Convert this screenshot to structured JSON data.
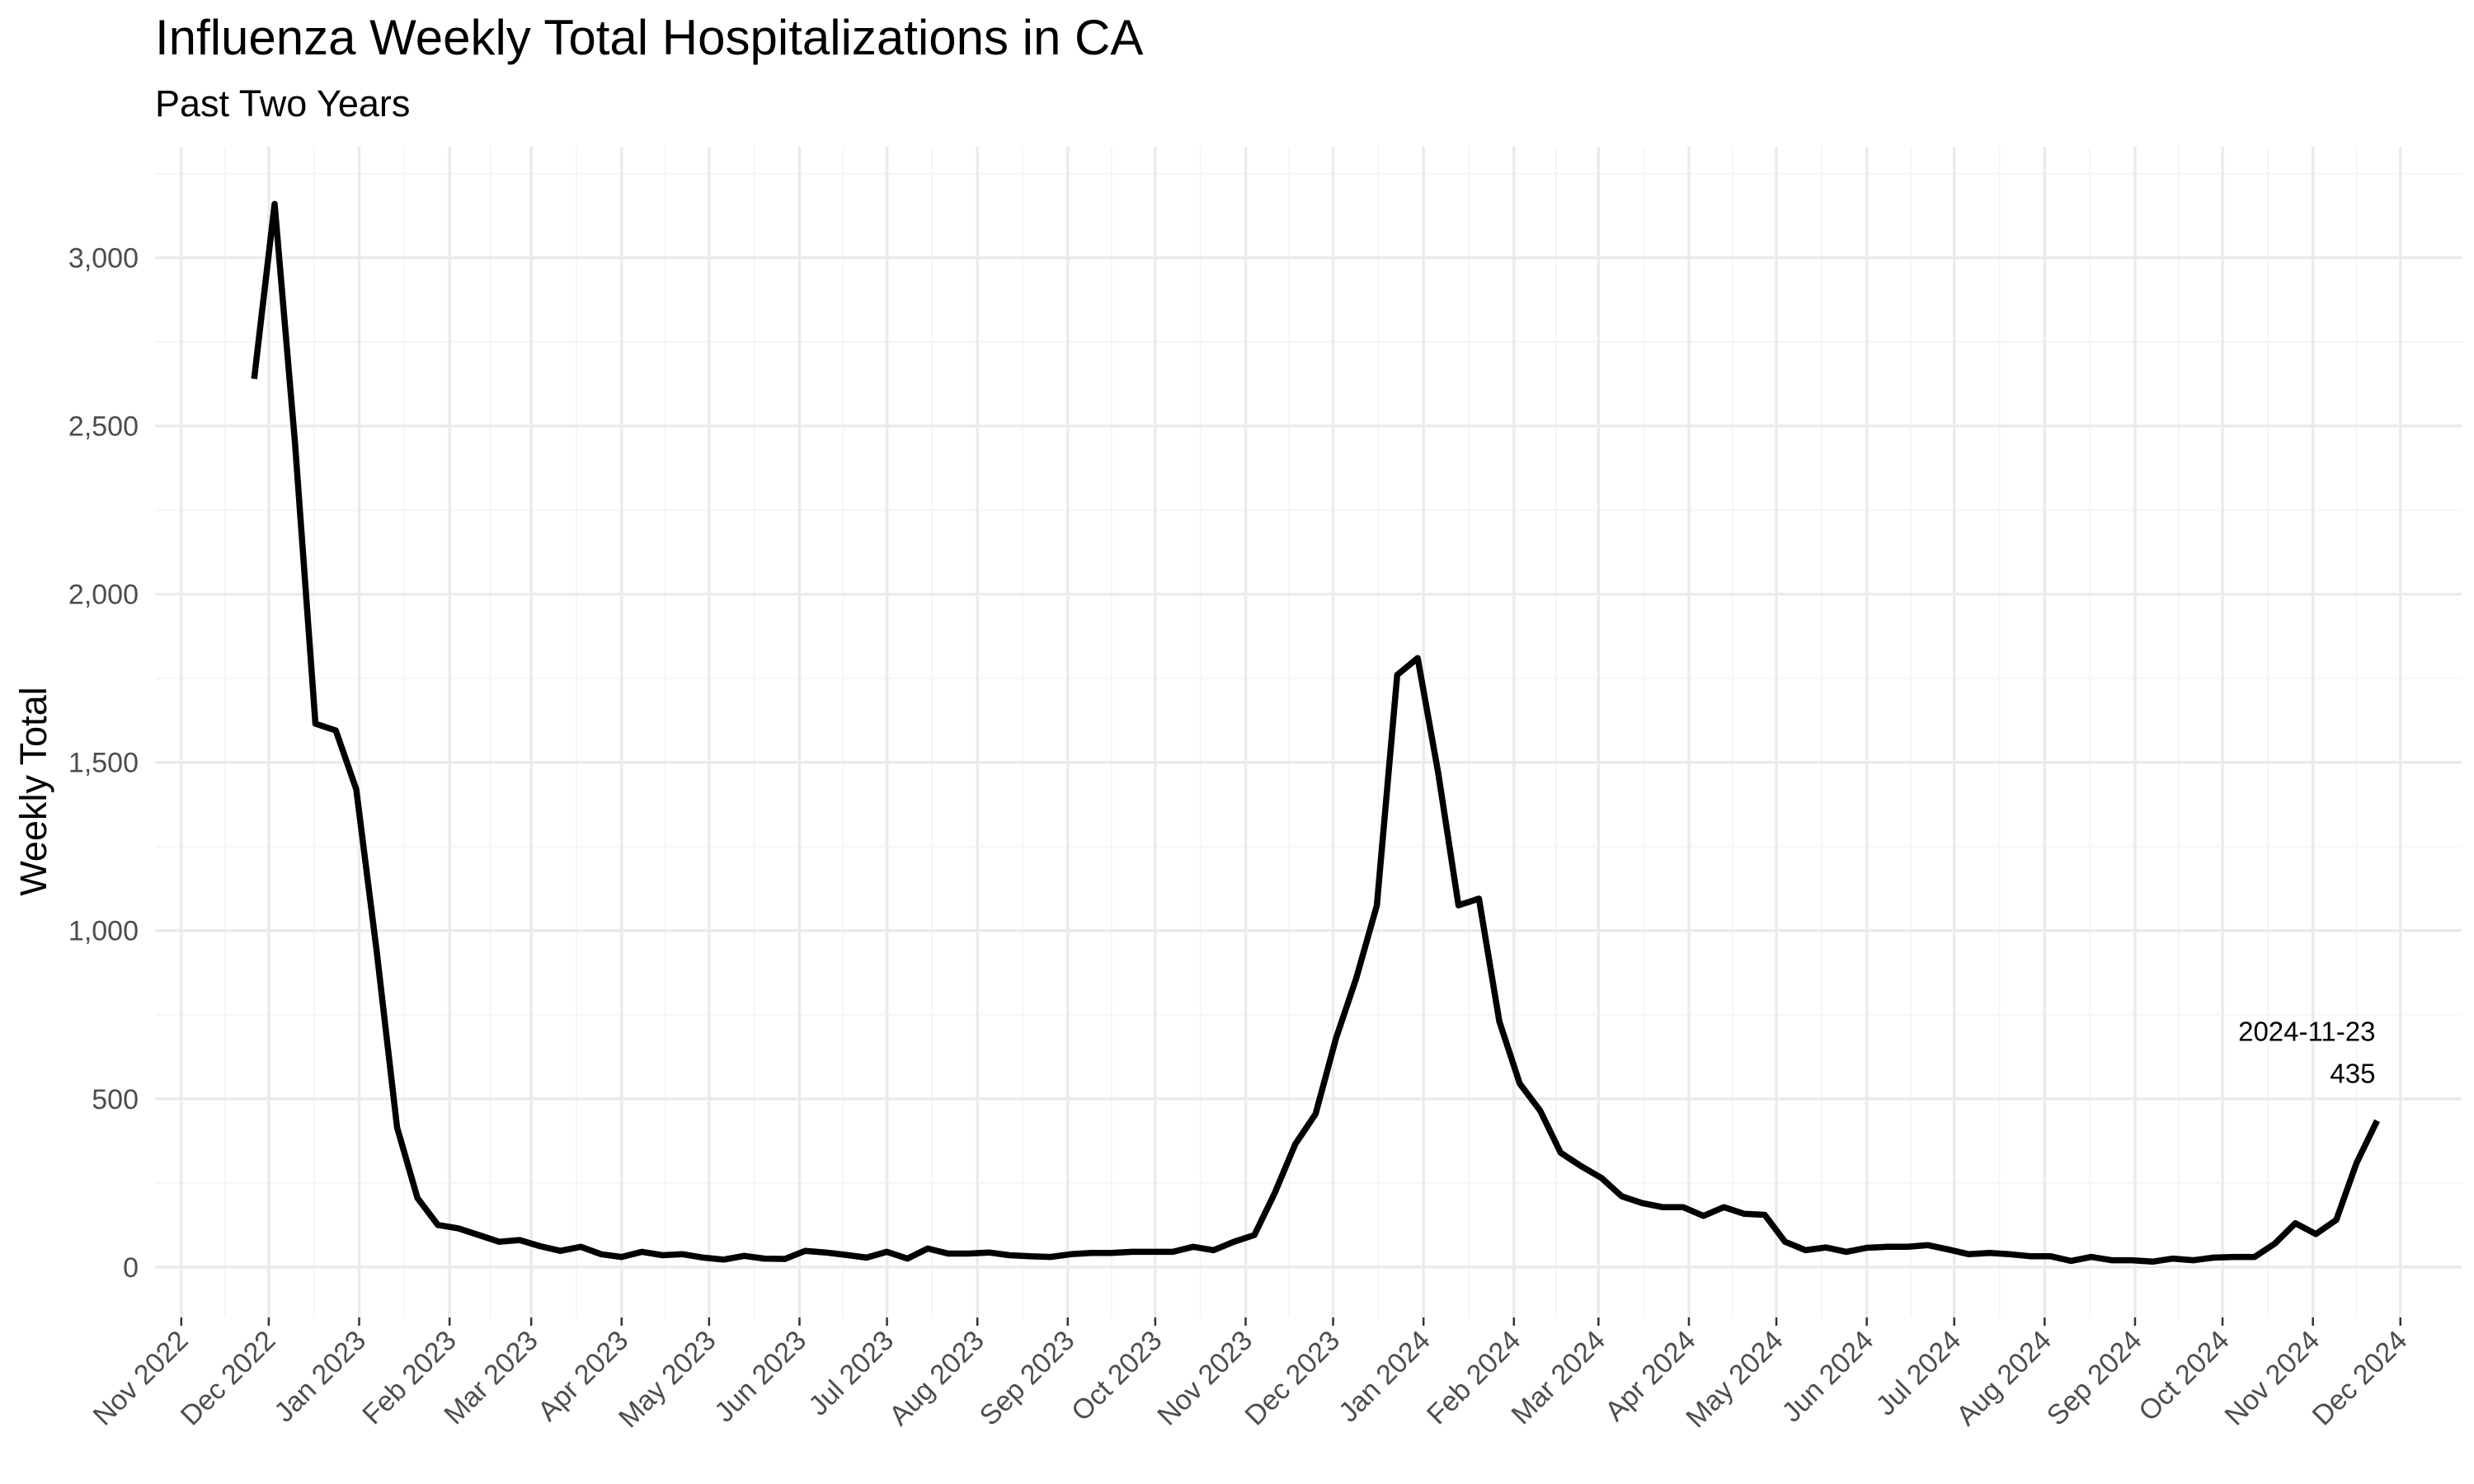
{
  "chart_data": {
    "type": "line",
    "title": "Influenza Weekly Total Hospitalizations in CA",
    "subtitle": "Past Two Years",
    "xlabel": "",
    "ylabel": "Weekly Total",
    "x_range": [
      "2022-10-23",
      "2024-12-22"
    ],
    "ylim": [
      -150,
      3330
    ],
    "y_ticks": [
      0,
      500,
      1000,
      1500,
      2000,
      2500,
      3000
    ],
    "y_tick_labels": [
      "0",
      "500",
      "1,000",
      "1,500",
      "2,000",
      "2,500",
      "3,000"
    ],
    "x_ticks": [
      "2022-11-01",
      "2022-12-01",
      "2023-01-01",
      "2023-02-01",
      "2023-03-01",
      "2023-04-01",
      "2023-05-01",
      "2023-06-01",
      "2023-07-01",
      "2023-08-01",
      "2023-09-01",
      "2023-10-01",
      "2023-11-01",
      "2023-12-01",
      "2024-01-01",
      "2024-02-01",
      "2024-03-01",
      "2024-04-01",
      "2024-05-01",
      "2024-06-01",
      "2024-07-01",
      "2024-08-01",
      "2024-09-01",
      "2024-10-01",
      "2024-11-01",
      "2024-12-01"
    ],
    "x_tick_labels": [
      "Nov 2022",
      "Dec 2022",
      "Jan 2023",
      "Feb 2023",
      "Mar 2023",
      "Apr 2023",
      "May 2023",
      "Jun 2023",
      "Jul 2023",
      "Aug 2023",
      "Sep 2023",
      "Oct 2023",
      "Nov 2023",
      "Dec 2023",
      "Jan 2024",
      "Feb 2024",
      "Mar 2024",
      "Apr 2024",
      "May 2024",
      "Jun 2024",
      "Jul 2024",
      "Aug 2024",
      "Sep 2024",
      "Oct 2024",
      "Nov 2024",
      "Dec 2024"
    ],
    "grid": true,
    "series": [
      {
        "color": "#000000",
        "x": [
          "2022-11-26",
          "2022-12-03",
          "2022-12-10",
          "2022-12-17",
          "2022-12-24",
          "2022-12-31",
          "2023-01-07",
          "2023-01-14",
          "2023-01-21",
          "2023-01-28",
          "2023-02-04",
          "2023-02-11",
          "2023-02-18",
          "2023-02-25",
          "2023-03-04",
          "2023-03-11",
          "2023-03-18",
          "2023-03-25",
          "2023-04-01",
          "2023-04-08",
          "2023-04-15",
          "2023-04-22",
          "2023-04-29",
          "2023-05-06",
          "2023-05-13",
          "2023-05-20",
          "2023-05-27",
          "2023-06-03",
          "2023-06-10",
          "2023-06-17",
          "2023-06-24",
          "2023-07-01",
          "2023-07-08",
          "2023-07-15",
          "2023-07-22",
          "2023-07-29",
          "2023-08-05",
          "2023-08-12",
          "2023-08-19",
          "2023-08-26",
          "2023-09-02",
          "2023-09-09",
          "2023-09-16",
          "2023-09-23",
          "2023-09-30",
          "2023-10-07",
          "2023-10-14",
          "2023-10-21",
          "2023-10-28",
          "2023-11-04",
          "2023-11-11",
          "2023-11-18",
          "2023-11-25",
          "2023-12-02",
          "2023-12-09",
          "2023-12-16",
          "2023-12-23",
          "2023-12-30",
          "2024-01-06",
          "2024-01-13",
          "2024-01-20",
          "2024-01-27",
          "2024-02-03",
          "2024-02-10",
          "2024-02-17",
          "2024-02-24",
          "2024-03-02",
          "2024-03-09",
          "2024-03-16",
          "2024-03-23",
          "2024-03-30",
          "2024-04-06",
          "2024-04-13",
          "2024-04-20",
          "2024-04-27",
          "2024-05-04",
          "2024-05-11",
          "2024-05-18",
          "2024-05-25",
          "2024-06-01",
          "2024-06-08",
          "2024-06-15",
          "2024-06-22",
          "2024-06-29",
          "2024-07-06",
          "2024-07-13",
          "2024-07-20",
          "2024-07-27",
          "2024-08-03",
          "2024-08-10",
          "2024-08-17",
          "2024-08-24",
          "2024-08-31",
          "2024-09-07",
          "2024-09-14",
          "2024-09-21",
          "2024-09-28",
          "2024-10-05",
          "2024-10-12",
          "2024-10-19",
          "2024-10-26",
          "2024-11-02",
          "2024-11-09",
          "2024-11-16",
          "2024-11-23"
        ],
        "y": [
          2640,
          3160,
          2450,
          1615,
          1595,
          1420,
          940,
          415,
          205,
          125,
          115,
          95,
          75,
          80,
          62,
          48,
          60,
          38,
          30,
          45,
          35,
          38,
          28,
          22,
          33,
          25,
          24,
          48,
          43,
          36,
          28,
          45,
          25,
          55,
          40,
          40,
          43,
          35,
          32,
          30,
          38,
          42,
          42,
          45,
          45,
          45,
          60,
          50,
          75,
          95,
          220,
          365,
          455,
          680,
          860,
          1075,
          1760,
          1810,
          1470,
          1075,
          1095,
          730,
          545,
          465,
          340,
          300,
          265,
          210,
          190,
          178,
          178,
          152,
          178,
          158,
          155,
          75,
          50,
          58,
          45,
          57,
          60,
          60,
          65,
          52,
          38,
          42,
          38,
          32,
          32,
          18,
          30,
          20,
          20,
          16,
          25,
          20,
          28,
          30,
          30,
          70,
          130,
          98,
          140,
          310,
          435
        ]
      }
    ],
    "annotations": [
      {
        "date_label": "2024-11-23",
        "value_label": "435",
        "x": "2024-11-23",
        "y": 435
      }
    ]
  }
}
